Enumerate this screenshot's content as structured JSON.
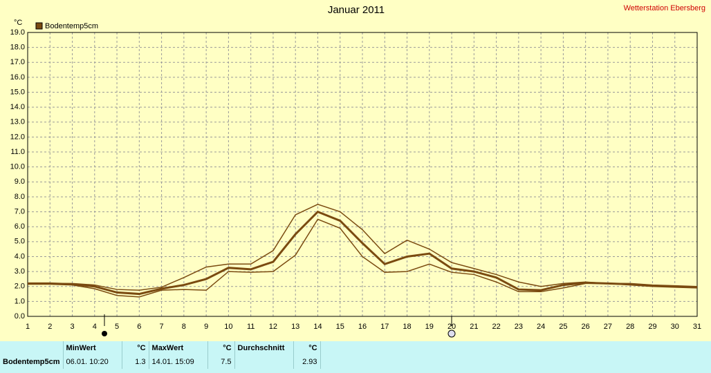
{
  "chart_data": {
    "type": "line",
    "title": "Januar 2011",
    "station": "Wetterstation Ebersberg",
    "y_unit": "°C",
    "x": [
      1,
      2,
      3,
      4,
      5,
      6,
      7,
      8,
      9,
      10,
      11,
      12,
      13,
      14,
      15,
      16,
      17,
      18,
      19,
      20,
      21,
      22,
      23,
      24,
      25,
      26,
      27,
      28,
      29,
      30,
      31
    ],
    "xlim": [
      1,
      31
    ],
    "xticks": [
      1,
      2,
      3,
      4,
      5,
      6,
      7,
      8,
      9,
      10,
      11,
      12,
      13,
      14,
      15,
      16,
      17,
      18,
      19,
      20,
      21,
      22,
      23,
      24,
      25,
      26,
      27,
      28,
      29,
      30,
      31
    ],
    "ylim": [
      0,
      19
    ],
    "yticks": [
      {
        "value": 0,
        "label": "0.0"
      },
      {
        "value": 1,
        "label": "1.0"
      },
      {
        "value": 2,
        "label": "2.0"
      },
      {
        "value": 3,
        "label": "3.0"
      },
      {
        "value": 4,
        "label": "4.0"
      },
      {
        "value": 5,
        "label": "5.0"
      },
      {
        "value": 6,
        "label": "6.0"
      },
      {
        "value": 7,
        "label": "7.0"
      },
      {
        "value": 8,
        "label": "8.0"
      },
      {
        "value": 9,
        "label": "9.0"
      },
      {
        "value": 10,
        "label": "10.0"
      },
      {
        "value": 11,
        "label": "11.0"
      },
      {
        "value": 12,
        "label": "12.0"
      },
      {
        "value": 13,
        "label": "13.0"
      },
      {
        "value": 14,
        "label": "14.0"
      },
      {
        "value": 15,
        "label": "15.0"
      },
      {
        "value": 16,
        "label": "16.0"
      },
      {
        "value": 17,
        "label": "17.0"
      },
      {
        "value": 18,
        "label": "18.0"
      },
      {
        "value": 19,
        "label": "19.0"
      }
    ],
    "grid": true,
    "legend": "top-left",
    "series": [
      {
        "name": "Bodentemp5cm",
        "color": "#7a4a10",
        "values": [
          2.2,
          2.2,
          2.15,
          2.0,
          1.6,
          1.5,
          1.85,
          2.1,
          2.5,
          3.25,
          3.15,
          3.65,
          5.5,
          7.0,
          6.4,
          4.9,
          3.5,
          4.0,
          4.2,
          3.2,
          3.0,
          2.6,
          1.8,
          1.75,
          2.1,
          2.25,
          2.2,
          2.15,
          2.05,
          2.0,
          1.95
        ],
        "high": [
          2.2,
          2.2,
          2.2,
          2.1,
          1.8,
          1.75,
          1.95,
          2.6,
          3.3,
          3.5,
          3.5,
          4.4,
          6.8,
          7.5,
          7.0,
          5.8,
          4.2,
          5.1,
          4.5,
          3.6,
          3.2,
          2.8,
          2.3,
          2.0,
          2.2,
          2.3,
          2.2,
          2.2,
          2.1,
          2.05,
          2.0
        ],
        "low": [
          2.15,
          2.15,
          2.1,
          1.85,
          1.4,
          1.3,
          1.75,
          1.8,
          1.75,
          3.0,
          2.95,
          3.0,
          4.1,
          6.5,
          5.9,
          4.0,
          2.95,
          3.0,
          3.5,
          2.95,
          2.8,
          2.3,
          1.65,
          1.65,
          1.9,
          2.2,
          2.2,
          2.1,
          2.0,
          1.95,
          1.9
        ]
      }
    ]
  },
  "stats": {
    "headers": [
      "MinWert",
      "°C",
      "MaxWert",
      "°C",
      "Durchschnitt",
      "°C"
    ],
    "row": {
      "name": "Bodentemp5cm",
      "min_time": "06.01.  10:20",
      "min": 1.3,
      "max_time": "14.01.  15:09",
      "max": 7.5,
      "avg": 2.93
    }
  }
}
